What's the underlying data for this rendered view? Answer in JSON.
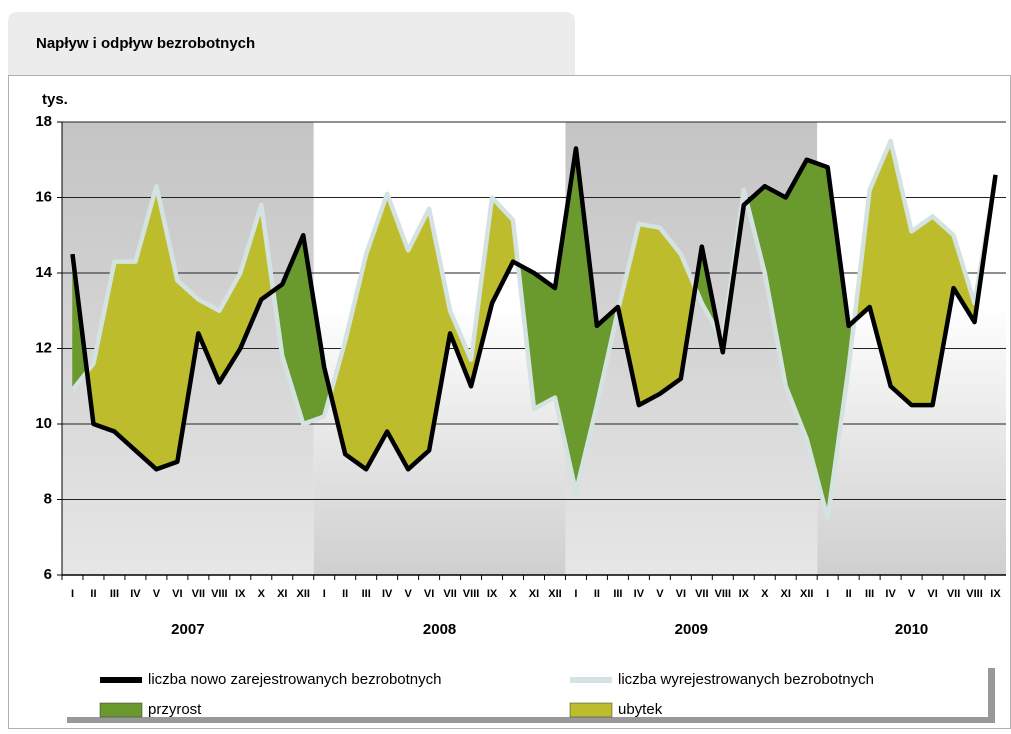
{
  "chart_data": {
    "type": "line",
    "title": "Napływ i odpływ bezrobotnych",
    "y_label": "tys.",
    "categories": [
      "I",
      "II",
      "III",
      "IV",
      "V",
      "VI",
      "VII",
      "VIII",
      "IX",
      "X",
      "XI",
      "XII",
      "I",
      "II",
      "III",
      "IV",
      "V",
      "VI",
      "VII",
      "VIII",
      "IX",
      "X",
      "XI",
      "XII",
      "I",
      "II",
      "III",
      "IV",
      "V",
      "VI",
      "VII",
      "VIII",
      "IX",
      "X",
      "XI",
      "XII",
      "I",
      "II",
      "III",
      "IV",
      "V",
      "VI",
      "VII",
      "VIII",
      "IX"
    ],
    "years": [
      "2007",
      "2008",
      "2009",
      "2010"
    ],
    "series": [
      {
        "name": "liczba nowo zarejestrowanych bezrobotnych",
        "color": "#000000",
        "values": [
          14.5,
          10.0,
          9.8,
          9.3,
          8.8,
          9.0,
          12.4,
          11.1,
          12.0,
          13.3,
          13.7,
          15.0,
          11.5,
          9.2,
          8.8,
          9.8,
          8.8,
          9.3,
          12.4,
          11.0,
          13.2,
          14.3,
          14.0,
          13.6,
          17.3,
          12.6,
          13.1,
          10.5,
          10.8,
          11.2,
          14.7,
          11.9,
          15.8,
          16.3,
          16.0,
          17.0,
          16.8,
          12.6,
          13.1,
          11.0,
          10.5,
          10.5,
          13.6,
          12.7,
          16.6
        ]
      },
      {
        "name": "liczba wyrejestrowanych bezrobotnych",
        "color": "#d5e2e2",
        "values": [
          10.9,
          11.6,
          14.3,
          14.3,
          16.3,
          13.8,
          13.3,
          13.0,
          14.0,
          15.8,
          11.8,
          10.0,
          10.2,
          12.2,
          14.5,
          16.1,
          14.6,
          15.7,
          13.0,
          11.7,
          16.0,
          15.4,
          10.4,
          10.7,
          8.2,
          10.5,
          13.0,
          15.3,
          15.2,
          14.5,
          13.2,
          12.2,
          16.2,
          14.0,
          11.0,
          9.6,
          7.5,
          11.5,
          16.2,
          17.5,
          15.1,
          15.5,
          15.0,
          13.2,
          16.5
        ]
      }
    ],
    "fills": [
      {
        "name": "przyrost",
        "color": "#6a9a2e"
      },
      {
        "name": "ubytek",
        "color": "#bcbc2c"
      }
    ],
    "ylim": [
      6,
      18
    ],
    "yticks": [
      6,
      8,
      10,
      12,
      14,
      16,
      18
    ],
    "grid": true
  }
}
